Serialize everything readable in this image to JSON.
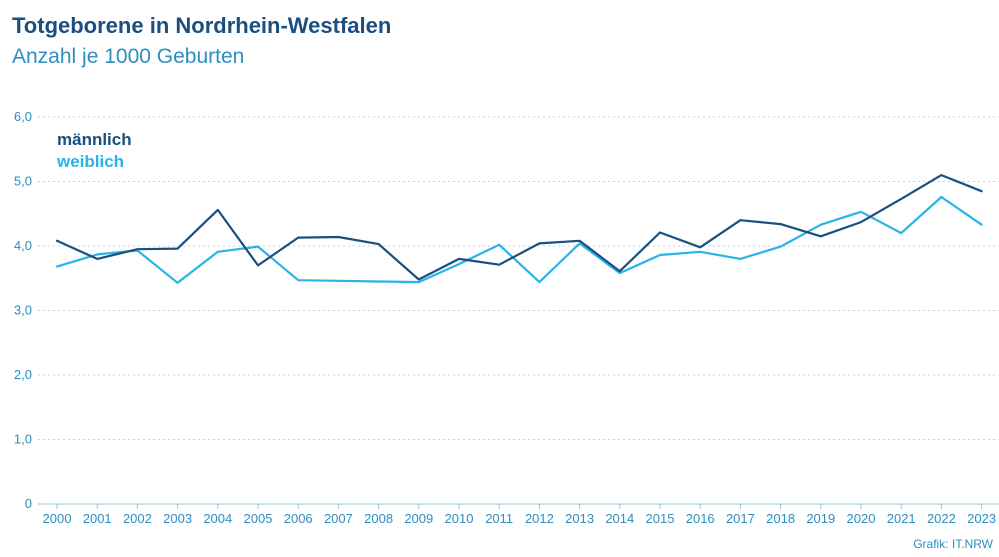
{
  "title": "Totgeborene in Nordrhein-Westfalen",
  "subtitle": "Anzahl je 1000 Geburten",
  "source": "Grafik: IT.NRW",
  "chart_data": {
    "type": "line",
    "title": "Totgeborene in Nordrhein-Westfalen",
    "subtitle": "Anzahl je 1000 Geburten",
    "xlabel": "",
    "ylabel": "",
    "x": [
      "2000",
      "2001",
      "2002",
      "2003",
      "2004",
      "2005",
      "2006",
      "2007",
      "2008",
      "2009",
      "2010",
      "2011",
      "2012",
      "2013",
      "2014",
      "2015",
      "2016",
      "2017",
      "2018",
      "2019",
      "2020",
      "2021",
      "2022",
      "2023"
    ],
    "ylim": [
      0,
      6
    ],
    "yticks": [
      "0",
      "1,0",
      "2,0",
      "3,0",
      "4,0",
      "5,0",
      "6,0"
    ],
    "grid": true,
    "legend_position": "top-left",
    "series": [
      {
        "name": "männlich",
        "color": "#1a4f7f",
        "values": [
          4.08,
          3.8,
          3.95,
          3.96,
          4.56,
          3.7,
          4.13,
          4.14,
          4.03,
          3.48,
          3.8,
          3.71,
          4.04,
          4.08,
          3.61,
          4.21,
          3.98,
          4.4,
          4.34,
          4.15,
          4.37,
          4.73,
          5.1,
          4.85
        ]
      },
      {
        "name": "weiblich",
        "color": "#29b4e8",
        "values": [
          3.68,
          3.87,
          3.93,
          3.43,
          3.91,
          3.99,
          3.47,
          3.46,
          3.45,
          3.44,
          3.72,
          4.02,
          3.44,
          4.04,
          3.58,
          3.86,
          3.91,
          3.8,
          3.99,
          4.33,
          4.53,
          4.2,
          4.76,
          4.33
        ]
      }
    ]
  }
}
